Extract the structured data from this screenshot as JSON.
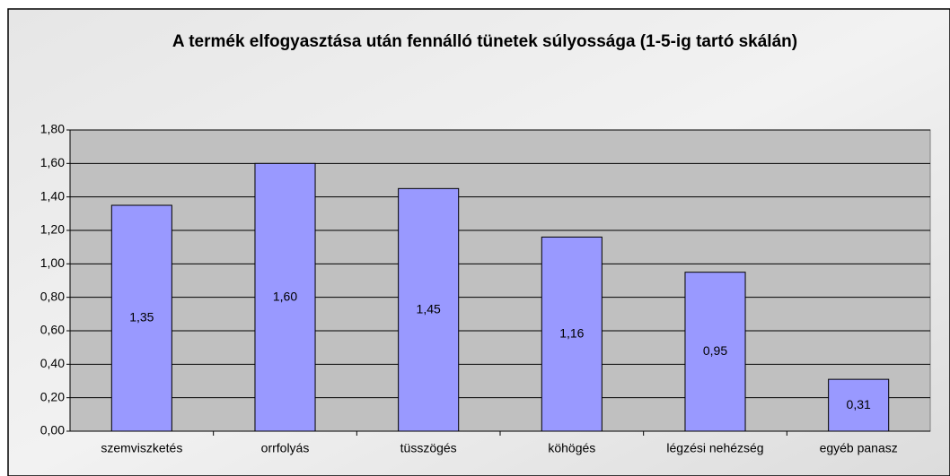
{
  "chart_data": {
    "type": "bar",
    "title": "A termék elfogyasztása után fennálló tünetek súlyossága (1-5-ig tartó skálán)",
    "categories": [
      "szemviszketés",
      "orrfolyás",
      "tüsszögés",
      "köhögés",
      "légzési nehézség",
      "egyéb panasz"
    ],
    "values": [
      1.35,
      1.6,
      1.45,
      1.16,
      0.95,
      0.31
    ],
    "value_labels": [
      "1,35",
      "1,60",
      "1,45",
      "1,16",
      "0,95",
      "0,31"
    ],
    "color": "#9999ff",
    "ylim": [
      0,
      1.8
    ],
    "yticks": [
      {
        "value": 0,
        "label": "0,00"
      },
      {
        "value": 0.2,
        "label": "0,20"
      },
      {
        "value": 0.4,
        "label": "0,40"
      },
      {
        "value": 0.6,
        "label": "0,60"
      },
      {
        "value": 0.8,
        "label": "0,80"
      },
      {
        "value": 1.0,
        "label": "1,00"
      },
      {
        "value": 1.2,
        "label": "1,20"
      },
      {
        "value": 1.4,
        "label": "1,40"
      },
      {
        "value": 1.6,
        "label": "1,60"
      },
      {
        "value": 1.8,
        "label": "1,80"
      }
    ],
    "grid": true
  }
}
